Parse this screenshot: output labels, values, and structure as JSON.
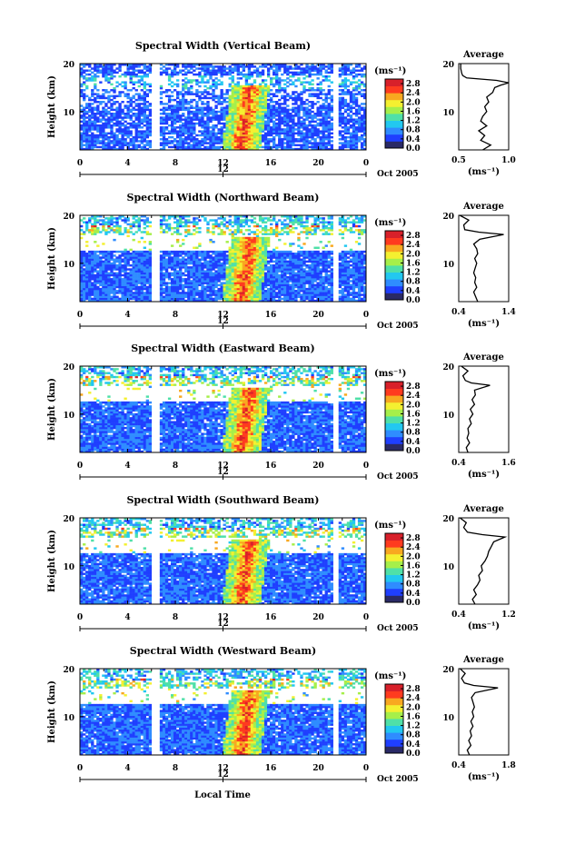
{
  "xlabel": "Local Time",
  "ylabel": "Height (km)",
  "date_label": "Oct 2005",
  "day_tick": "12",
  "unit_label": "(ms⁻¹)",
  "avg_unit_label": "(ms⁻¹)",
  "avg_title": "Average",
  "colorbar": {
    "ticks": [
      "2.8",
      "2.4",
      "2.0",
      "1.6",
      "1.2",
      "0.8",
      "0.4",
      "0.0"
    ],
    "range": [
      0.0,
      3.0
    ],
    "colors": [
      "#2a2a66",
      "#1f3fff",
      "#2f8cff",
      "#22c8f0",
      "#4fe0a8",
      "#a6ef4a",
      "#f4f030",
      "#f8a820",
      "#ff3b1f",
      "#d8202a"
    ]
  },
  "chart_data": [
    {
      "type": "heatmap",
      "title": "Spectral Width (Vertical Beam)",
      "x_range": [
        0,
        24
      ],
      "y_range": [
        2,
        20
      ],
      "x_ticks": [
        "0",
        "4",
        "8",
        "12",
        "16",
        "20",
        "0"
      ],
      "y_ticks": [
        "20",
        "10"
      ],
      "avg": {
        "xlim": [
          0.5,
          1.0
        ],
        "x_ticks": [
          "0.5",
          "1.0"
        ],
        "height": [
          2,
          3,
          4,
          5,
          6,
          7,
          8,
          9,
          10,
          11,
          12,
          13,
          14,
          15,
          15.5,
          16,
          16.5,
          17,
          17.5,
          18,
          19,
          20
        ],
        "value": [
          0.74,
          0.82,
          0.72,
          0.76,
          0.7,
          0.78,
          0.72,
          0.74,
          0.78,
          0.76,
          0.8,
          0.78,
          0.84,
          0.86,
          0.92,
          1.0,
          0.88,
          0.58,
          0.54,
          0.53,
          0.52,
          0.52
        ]
      }
    },
    {
      "type": "heatmap",
      "title": "Spectral Width (Northward Beam)",
      "x_range": [
        0,
        24
      ],
      "y_range": [
        2,
        20
      ],
      "x_ticks": [
        "0",
        "4",
        "8",
        "12",
        "16",
        "20",
        "0"
      ],
      "y_ticks": [
        "20",
        "10"
      ],
      "avg": {
        "xlim": [
          0.4,
          1.4
        ],
        "x_ticks": [
          "0.4",
          "1.4"
        ],
        "height": [
          2,
          3,
          4,
          5,
          6,
          7,
          8,
          9,
          10,
          11,
          12,
          13,
          14,
          15,
          16,
          16.5,
          17,
          18,
          19,
          20
        ],
        "value": [
          0.78,
          0.74,
          0.7,
          0.76,
          0.72,
          0.74,
          0.7,
          0.73,
          0.76,
          0.72,
          0.78,
          0.76,
          0.7,
          0.82,
          1.3,
          0.8,
          0.52,
          0.5,
          0.6,
          0.42
        ]
      }
    },
    {
      "type": "heatmap",
      "title": "Spectral Width (Eastward Beam)",
      "x_range": [
        0,
        24
      ],
      "y_range": [
        2,
        20
      ],
      "x_ticks": [
        "0",
        "4",
        "8",
        "12",
        "16",
        "20",
        "0"
      ],
      "y_ticks": [
        "20",
        "10"
      ],
      "avg": {
        "xlim": [
          0.4,
          1.6
        ],
        "x_ticks": [
          "0.4",
          "1.6"
        ],
        "height": [
          2,
          3,
          4,
          5,
          6,
          7,
          8,
          9,
          10,
          11,
          12,
          13,
          14,
          15,
          16,
          16.5,
          17,
          18,
          19,
          20
        ],
        "value": [
          0.62,
          0.58,
          0.66,
          0.6,
          0.64,
          0.62,
          0.7,
          0.66,
          0.74,
          0.68,
          0.78,
          0.72,
          0.8,
          0.78,
          1.15,
          0.7,
          0.56,
          0.5,
          0.62,
          0.46
        ]
      }
    },
    {
      "type": "heatmap",
      "title": "Spectral Width (Southward Beam)",
      "x_range": [
        0,
        24
      ],
      "y_range": [
        2,
        20
      ],
      "x_ticks": [
        "0",
        "4",
        "8",
        "12",
        "16",
        "20",
        "0"
      ],
      "y_ticks": [
        "20",
        "10"
      ],
      "avg": {
        "xlim": [
          0.4,
          1.2
        ],
        "x_ticks": [
          "0.4",
          "1.2"
        ],
        "height": [
          2,
          3,
          4,
          5,
          6,
          7,
          8,
          9,
          10,
          11,
          12,
          13,
          14,
          15,
          16,
          16.5,
          17,
          18,
          19,
          20
        ],
        "value": [
          0.66,
          0.62,
          0.68,
          0.64,
          0.7,
          0.74,
          0.72,
          0.78,
          0.76,
          0.82,
          0.86,
          0.88,
          0.92,
          0.96,
          1.14,
          0.78,
          0.54,
          0.48,
          0.52,
          0.42
        ]
      }
    },
    {
      "type": "heatmap",
      "title": "Spectral Width (Westward Beam)",
      "x_range": [
        0,
        24
      ],
      "y_range": [
        2,
        20
      ],
      "x_ticks": [
        "0",
        "4",
        "8",
        "12",
        "16",
        "20",
        "0"
      ],
      "y_ticks": [
        "20",
        "10"
      ],
      "avg": {
        "xlim": [
          0.4,
          1.8
        ],
        "x_ticks": [
          "0.4",
          "1.8"
        ],
        "height": [
          2,
          3,
          4,
          5,
          6,
          7,
          8,
          9,
          10,
          11,
          12,
          13,
          14,
          15,
          16,
          16.5,
          17,
          18,
          19,
          20
        ],
        "value": [
          0.7,
          0.64,
          0.74,
          0.68,
          0.76,
          0.72,
          0.8,
          0.74,
          0.82,
          0.78,
          0.84,
          0.8,
          0.76,
          0.86,
          1.5,
          0.82,
          0.56,
          0.48,
          0.58,
          0.44
        ]
      }
    }
  ]
}
